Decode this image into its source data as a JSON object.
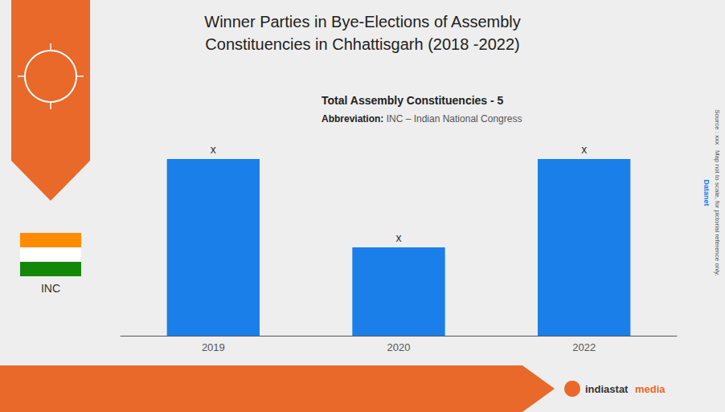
{
  "chart_data": {
    "type": "bar",
    "title": "Winner Parties in Bye-Elections of Assembly\nConstituencies in Chhattisgarh (2018 -2022)",
    "categories": [
      "2019",
      "2020",
      "2022"
    ],
    "values": [
      2,
      1,
      2
    ],
    "value_labels": [
      "x",
      "x",
      "x"
    ],
    "data_labels": true,
    "color": "#1a7fe8",
    "ylim": [
      0,
      2.8
    ],
    "grid": false,
    "tick_labels": "x",
    "annotations": [
      "Total Assembly Constituencies - 5",
      "Abbreviation:",
      " INC – Indian National Congress",
      "INC",
      "indiastat",
      "media",
      "Source : xxx   Map not to scale, for pictorial reference only.",
      "Datanet"
    ]
  }
}
